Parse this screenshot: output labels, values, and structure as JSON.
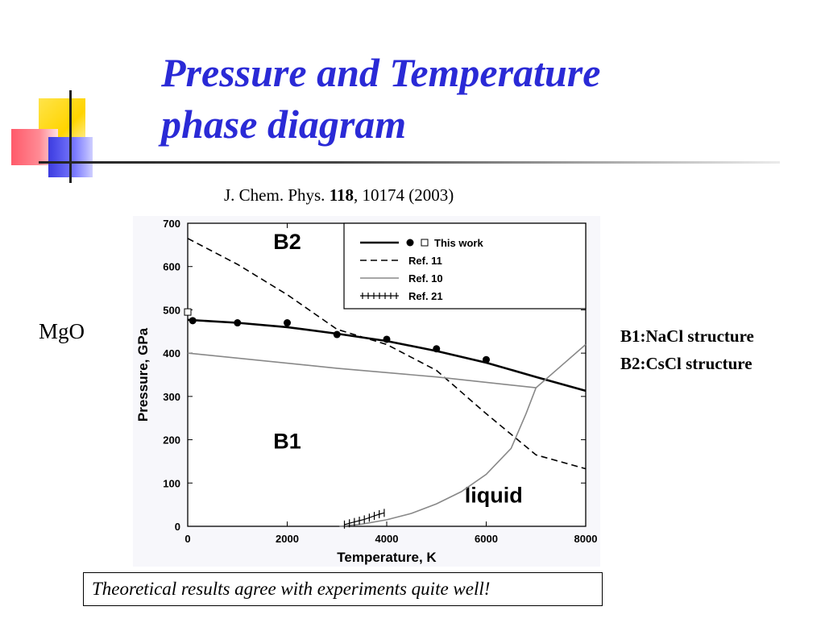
{
  "slide": {
    "title_line1": "Pressure and Temperature",
    "title_line2": "phase diagram",
    "citation_prefix": "J. Chem. Phys. ",
    "citation_volume": "118",
    "citation_suffix": ", 10174 (2003)",
    "material": "MgO",
    "note_b1": "B1:NaCl structure",
    "note_b2": "B2:CsCl structure",
    "caption": "Theoretical results agree with experiments quite well!",
    "colors": {
      "title": "#2a2ad6",
      "deco_yellow": "#ffd400",
      "deco_red": "#ff5a6a",
      "deco_blue": "#3b3be0"
    }
  },
  "chart_data": {
    "type": "line",
    "xlabel": "Temperature, K",
    "ylabel": "Pressure, GPa",
    "xlim": [
      0,
      8000
    ],
    "ylim": [
      0,
      700
    ],
    "xticks": [
      0,
      2000,
      4000,
      6000,
      8000
    ],
    "yticks": [
      0,
      100,
      200,
      300,
      400,
      500,
      600,
      700
    ],
    "grid": false,
    "legend_position": "top-right",
    "region_labels": [
      "B2",
      "B1",
      "liquid"
    ],
    "series": [
      {
        "name": "This work",
        "style": "solid-thick",
        "color": "#000000",
        "x": [
          0,
          1000,
          2000,
          3000,
          4000,
          5000,
          6000,
          7000,
          8000
        ],
        "y": [
          477,
          470,
          460,
          445,
          428,
          405,
          378,
          345,
          313
        ]
      },
      {
        "name": "This work points",
        "style": "filled-circle",
        "x": [
          100,
          1000,
          2000,
          3000,
          4000,
          5000,
          6000
        ],
        "y": [
          475,
          470,
          470,
          443,
          432,
          410,
          385
        ]
      },
      {
        "name": "This work open",
        "style": "open-square",
        "x": [
          0
        ],
        "y": [
          495
        ]
      },
      {
        "name": "Ref. 11",
        "style": "dashed",
        "color": "#000000",
        "x": [
          0,
          1000,
          2000,
          3000,
          4000,
          5000,
          6000,
          7000,
          8000
        ],
        "y": [
          665,
          605,
          535,
          455,
          420,
          360,
          260,
          165,
          133
        ]
      },
      {
        "name": "Ref. 10",
        "style": "thin",
        "color": "#888888",
        "x": [
          0,
          3000,
          5000,
          7000
        ],
        "y": [
          400,
          365,
          345,
          320
        ]
      },
      {
        "name": "Ref. 10 melting",
        "style": "thin",
        "color": "#888888",
        "x": [
          3050,
          3500,
          4000,
          4500,
          5000,
          5500,
          6000,
          6500,
          6800,
          7000,
          7500,
          8000
        ],
        "y": [
          0,
          5,
          15,
          30,
          52,
          80,
          120,
          180,
          260,
          320,
          370,
          420
        ]
      },
      {
        "name": "Ref. 21",
        "style": "crosses",
        "color": "#000000",
        "x": [
          3150,
          3250,
          3350,
          3450,
          3550,
          3650,
          3750,
          3850,
          3950
        ],
        "y": [
          4,
          7,
          10,
          13,
          16,
          20,
          24,
          28,
          31
        ]
      }
    ],
    "legend": [
      {
        "label": "This work",
        "style": "this-work"
      },
      {
        "label": "Ref. 11",
        "style": "dashed"
      },
      {
        "label": "Ref. 10",
        "style": "thin"
      },
      {
        "label": "Ref. 21",
        "style": "crosses"
      }
    ]
  }
}
